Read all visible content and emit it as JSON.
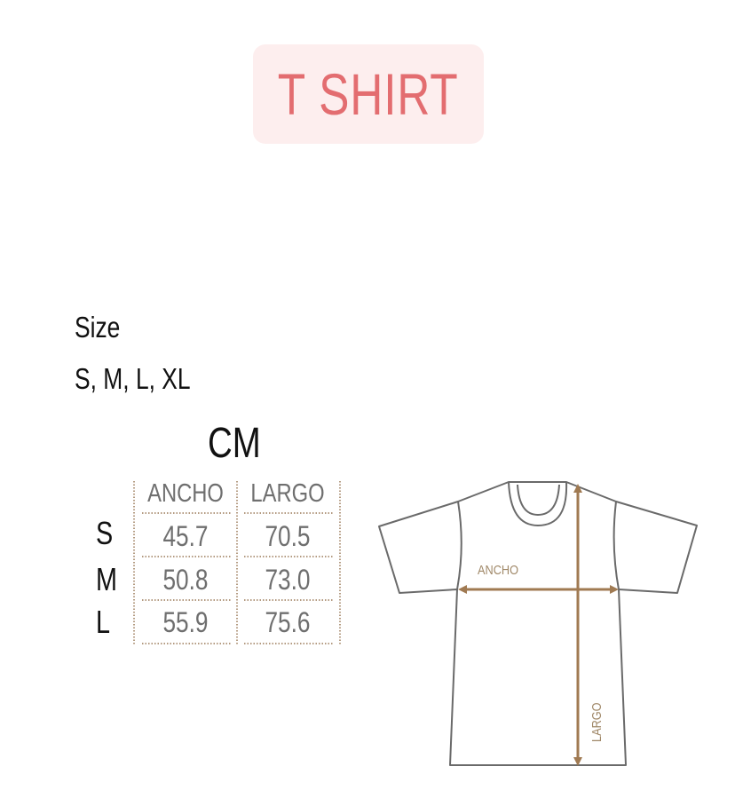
{
  "title": "T SHIRT",
  "size_label": "Size",
  "sizes_available": "S, M, L, XL",
  "unit": "CM",
  "table": {
    "columns": [
      "ANCHO",
      "LARGO"
    ],
    "rows": [
      {
        "size": "S",
        "ancho": "45.7",
        "largo": "70.5"
      },
      {
        "size": "M",
        "ancho": "50.8",
        "largo": "73.0"
      },
      {
        "size": "L",
        "ancho": "55.9",
        "largo": "75.6"
      }
    ]
  },
  "diagram": {
    "width_label": "ANCHO",
    "length_label": "LARGO"
  },
  "colors": {
    "title_text": "#e36d70",
    "title_bg": "#fdeeee",
    "measure_arrow": "#a07a52",
    "outline": "#6a6a6a"
  }
}
